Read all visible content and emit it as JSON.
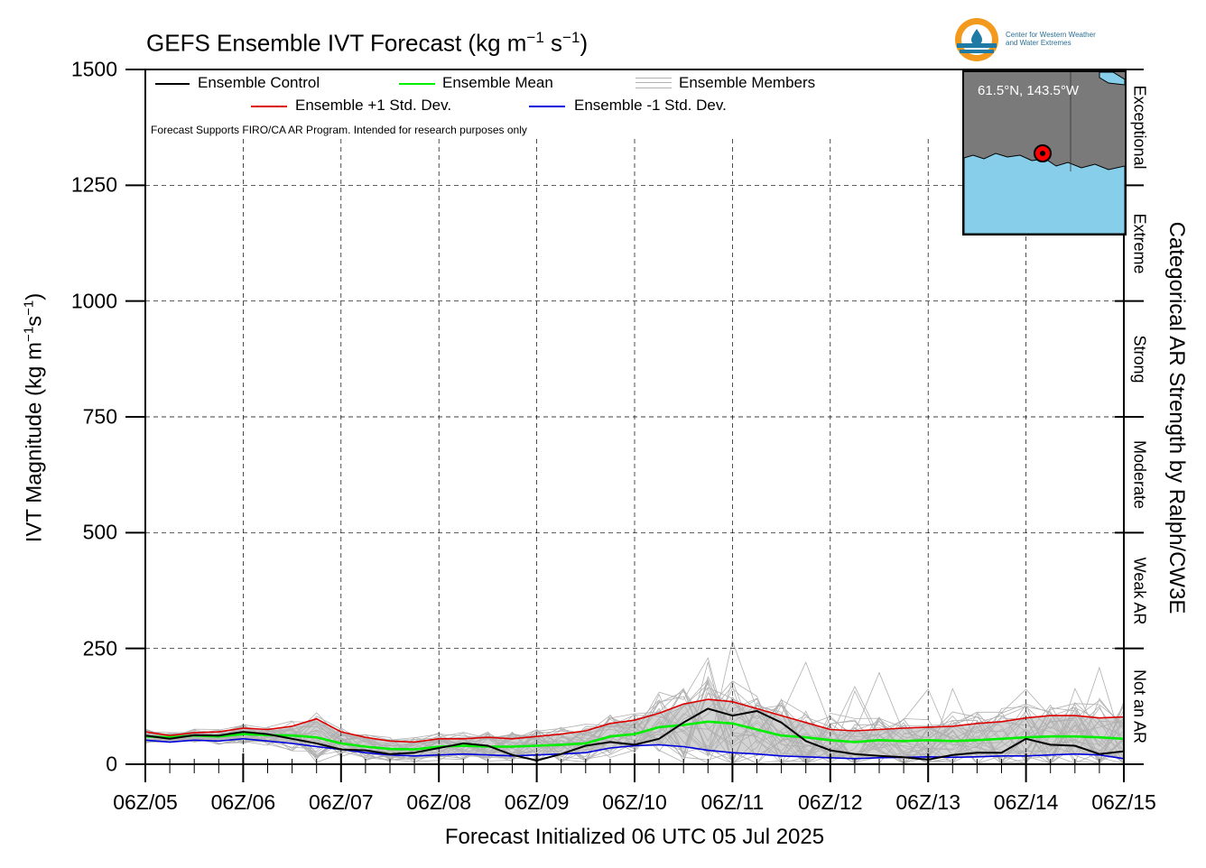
{
  "title": {
    "main": "GEFS Ensemble IVT Forecast (kg m",
    "sup1": "−1",
    "mid": " s",
    "sup2": "−1",
    "end": ")"
  },
  "logo": {
    "line1": "Center for Western Weather",
    "line2": "and Water Extremes",
    "accent": "#f39a1e",
    "water": "#1f7aa6"
  },
  "y_axis": {
    "label_main": "IVT Magnitude (kg m",
    "label_sup1": "−1",
    "label_mid": "s",
    "label_sup2": "−1",
    "label_end": ")",
    "ticks": [
      "0",
      "250",
      "500",
      "750",
      "1000",
      "1250",
      "1500"
    ]
  },
  "x_axis": {
    "label": "Forecast Initialized 06 UTC 05 Jul 2025",
    "ticks": [
      "06Z/05",
      "06Z/06",
      "06Z/07",
      "06Z/08",
      "06Z/09",
      "06Z/10",
      "06Z/11",
      "06Z/12",
      "06Z/13",
      "06Z/14",
      "06Z/15"
    ]
  },
  "right_axis": {
    "label": "Categorical AR Strength by Ralph/CW3E",
    "categories": [
      "Not an AR",
      "Weak AR",
      "Moderate",
      "Strong",
      "Extreme",
      "Exceptional"
    ]
  },
  "legend": {
    "control": "Ensemble Control",
    "mean": "Ensemble Mean",
    "members": "Ensemble Members",
    "plus": "Ensemble +1 Std. Dev.",
    "minus": "Ensemble -1 Std. Dev."
  },
  "note": "Forecast Supports FIRO/CA AR Program. Intended for research purposes only",
  "inset": {
    "coord": "61.5°N, 143.5°W",
    "land_color": "#7a7a7a",
    "ocean_color": "#87ceeb",
    "marker_color": "#ff0000"
  },
  "colors": {
    "control": "#000000",
    "mean": "#00ee00",
    "plus": "#dd0000",
    "minus": "#0000dd",
    "members": "#b0b0b0",
    "spread": "#d3d3d3"
  },
  "chart_data": {
    "type": "line",
    "x_unit": "days since 06Z/05",
    "ylim": [
      0,
      1500
    ],
    "xlim": [
      0,
      10
    ],
    "grid": true,
    "category_thresholds": [
      250,
      500,
      750,
      1000,
      1250
    ],
    "x": [
      0,
      0.25,
      0.5,
      0.75,
      1,
      1.25,
      1.5,
      1.75,
      2,
      2.25,
      2.5,
      2.75,
      3,
      3.25,
      3.5,
      3.75,
      4,
      4.25,
      4.5,
      4.75,
      5,
      5.25,
      5.5,
      5.75,
      6,
      6.25,
      6.5,
      6.75,
      7,
      7.25,
      7.5,
      7.75,
      8,
      8.25,
      8.5,
      8.75,
      9,
      9.25,
      9.5,
      9.75,
      10
    ],
    "series": [
      {
        "name": "Ensemble Control",
        "values": [
          62,
          55,
          63,
          62,
          70,
          65,
          55,
          45,
          32,
          30,
          22,
          25,
          35,
          45,
          40,
          20,
          8,
          22,
          40,
          48,
          42,
          55,
          90,
          120,
          105,
          115,
          90,
          50,
          30,
          22,
          18,
          15,
          10,
          20,
          25,
          25,
          55,
          42,
          40,
          22,
          28
        ]
      },
      {
        "name": "Ensemble Mean",
        "values": [
          60,
          58,
          62,
          60,
          65,
          63,
          62,
          58,
          45,
          38,
          33,
          32,
          38,
          40,
          38,
          38,
          40,
          42,
          45,
          60,
          65,
          80,
          85,
          92,
          88,
          75,
          62,
          58,
          52,
          48,
          52,
          50,
          52,
          50,
          52,
          55,
          58,
          60,
          60,
          58,
          55
        ]
      },
      {
        "name": "Ensemble +1 Std. Dev.",
        "values": [
          70,
          62,
          68,
          70,
          78,
          75,
          82,
          98,
          70,
          58,
          50,
          48,
          55,
          55,
          58,
          55,
          60,
          65,
          72,
          88,
          95,
          110,
          130,
          140,
          135,
          120,
          105,
          90,
          75,
          72,
          75,
          78,
          80,
          82,
          88,
          92,
          100,
          105,
          105,
          100,
          102
        ]
      },
      {
        "name": "Ensemble -1 Std. Dev.",
        "values": [
          52,
          48,
          52,
          50,
          55,
          50,
          45,
          38,
          32,
          25,
          20,
          18,
          20,
          22,
          20,
          18,
          20,
          22,
          25,
          35,
          40,
          42,
          38,
          30,
          25,
          22,
          18,
          16,
          14,
          12,
          14,
          15,
          16,
          15,
          16,
          18,
          18,
          20,
          22,
          20,
          12
        ]
      }
    ]
  }
}
